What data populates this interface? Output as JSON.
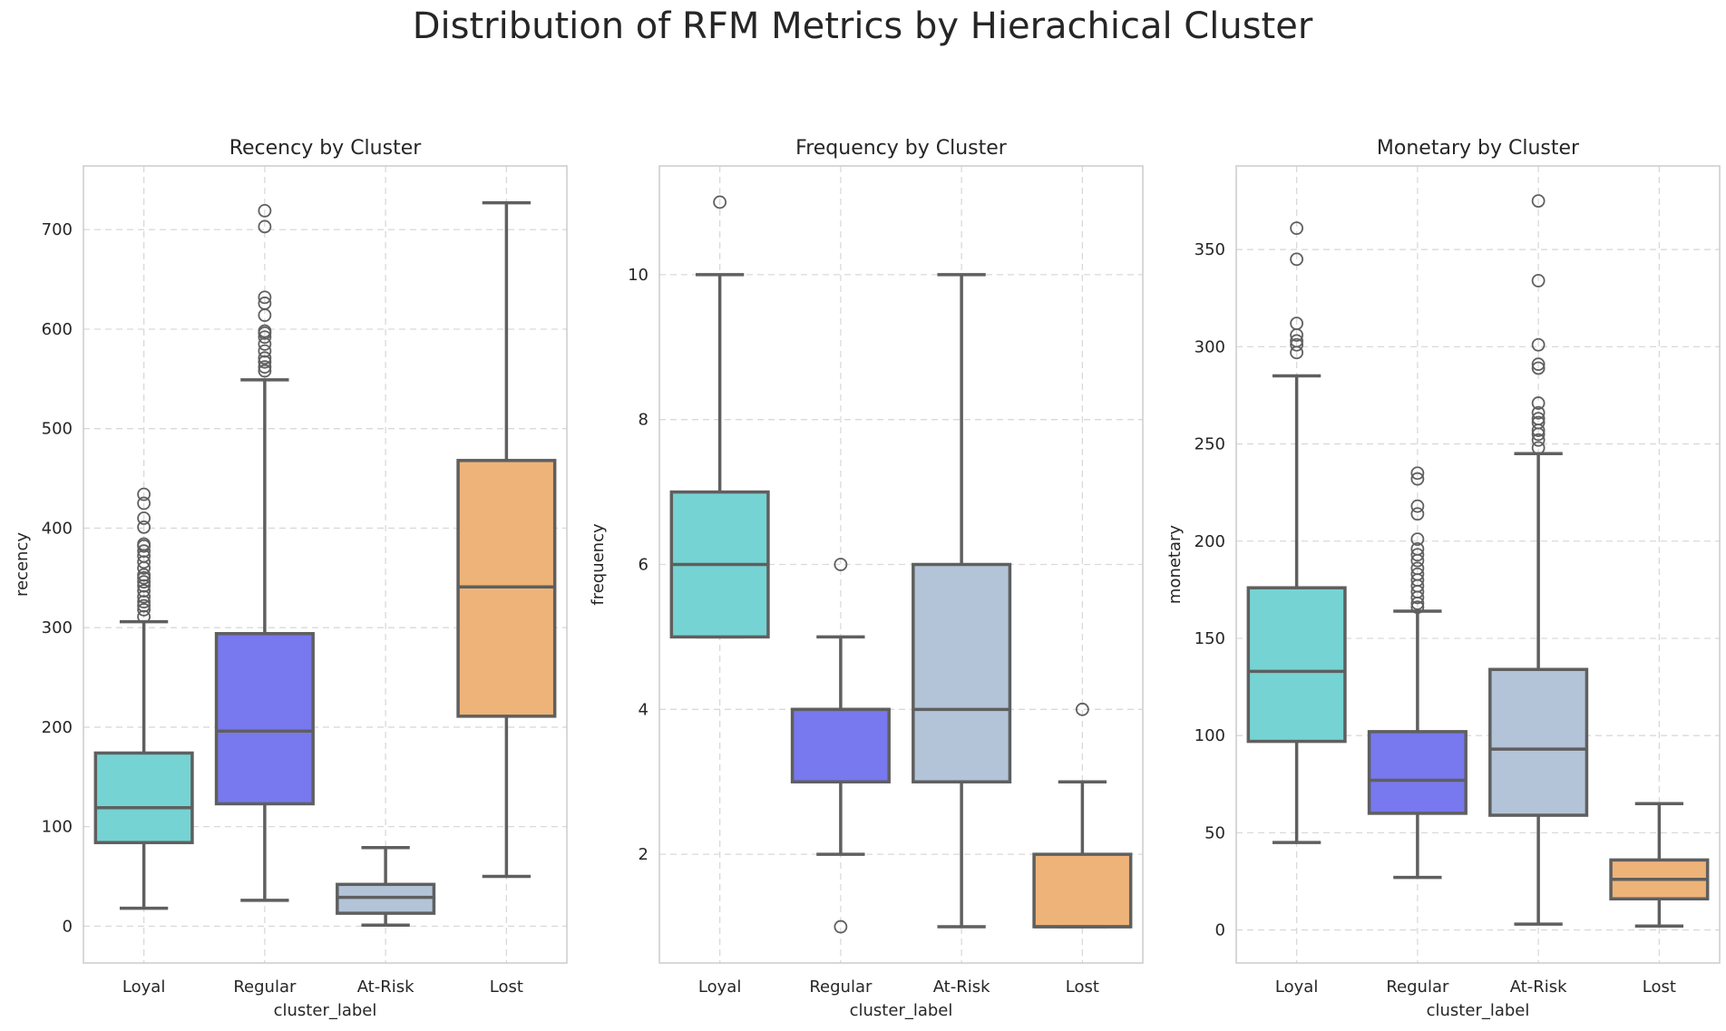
{
  "figure": {
    "suptitle": "Distribution of RFM Metrics by Hierachical Cluster",
    "colors": {
      "Loyal": "#76d3d3",
      "Regular": "#7878ef",
      "At-Risk": "#b3c4d9",
      "Lost": "#eeb378",
      "box_edge": "#5f5f5f",
      "grid": "#d9d9d9",
      "spine": "#cccccc"
    }
  },
  "chart_data": [
    {
      "type": "box",
      "title": "Recency by Cluster",
      "xlabel": "cluster_label",
      "ylabel": "recency",
      "categories": [
        "Loyal",
        "Regular",
        "At-Risk",
        "Lost"
      ],
      "ylim": [
        -37,
        764
      ],
      "yticks": [
        0,
        100,
        200,
        300,
        400,
        500,
        600,
        700
      ],
      "grid": true,
      "boxes": [
        {
          "category": "Loyal",
          "whislo": 18,
          "q1": 84,
          "median": 119,
          "q3": 174,
          "whishi": 306,
          "fliers": [
            311,
            318,
            322,
            326,
            331,
            337,
            342,
            346,
            350,
            353,
            360,
            366,
            372,
            377,
            382,
            384,
            401,
            410,
            425,
            434
          ]
        },
        {
          "category": "Regular",
          "whislo": 26,
          "q1": 123,
          "median": 196,
          "q3": 294,
          "whishi": 549,
          "fliers": [
            558,
            562,
            567,
            571,
            578,
            585,
            592,
            596,
            598,
            614,
            626,
            632,
            703,
            719
          ]
        },
        {
          "category": "At-Risk",
          "whislo": 1,
          "q1": 13,
          "median": 29,
          "q3": 42,
          "whishi": 79,
          "fliers": []
        },
        {
          "category": "Lost",
          "whislo": 50,
          "q1": 211,
          "median": 341,
          "q3": 468,
          "whishi": 727,
          "fliers": []
        }
      ]
    },
    {
      "type": "box",
      "title": "Frequency by Cluster",
      "xlabel": "cluster_label",
      "ylabel": "frequency",
      "categories": [
        "Loyal",
        "Regular",
        "At-Risk",
        "Lost"
      ],
      "ylim": [
        0.5,
        11.5
      ],
      "yticks": [
        2,
        4,
        6,
        8,
        10
      ],
      "grid": true,
      "boxes": [
        {
          "category": "Loyal",
          "whislo": 5,
          "q1": 5,
          "median": 6,
          "q3": 7,
          "whishi": 10,
          "fliers": [
            11
          ]
        },
        {
          "category": "Regular",
          "whislo": 2,
          "q1": 3,
          "median": 4,
          "q3": 4,
          "whishi": 5,
          "fliers": [
            1,
            6
          ]
        },
        {
          "category": "At-Risk",
          "whislo": 1,
          "q1": 3,
          "median": 4,
          "q3": 6,
          "whishi": 10,
          "fliers": []
        },
        {
          "category": "Lost",
          "whislo": 1,
          "q1": 1,
          "median": 1,
          "q3": 2,
          "whishi": 3,
          "fliers": [
            4
          ]
        }
      ]
    },
    {
      "type": "box",
      "title": "Monetary by Cluster",
      "xlabel": "cluster_label",
      "ylabel": "monetary",
      "categories": [
        "Loyal",
        "Regular",
        "At-Risk",
        "Lost"
      ],
      "ylim": [
        -17,
        393
      ],
      "yticks": [
        0,
        50,
        100,
        150,
        200,
        250,
        300,
        350
      ],
      "grid": true,
      "boxes": [
        {
          "category": "Loyal",
          "whislo": 45,
          "q1": 97,
          "median": 133,
          "q3": 176,
          "whishi": 285,
          "fliers": [
            297,
            301,
            303,
            306,
            312,
            345,
            361
          ]
        },
        {
          "category": "Regular",
          "whislo": 27,
          "q1": 60,
          "median": 77,
          "q3": 102,
          "whishi": 164,
          "fliers": [
            166,
            168,
            171,
            174,
            177,
            180,
            183,
            186,
            190,
            193,
            196,
            201,
            214,
            218,
            232,
            235
          ]
        },
        {
          "category": "At-Risk",
          "whislo": 3,
          "q1": 59,
          "median": 93,
          "q3": 134,
          "whishi": 245,
          "fliers": [
            248,
            252,
            255,
            257,
            261,
            263,
            266,
            271,
            289,
            291,
            301,
            334,
            375
          ]
        },
        {
          "category": "Lost",
          "whislo": 2,
          "q1": 16,
          "median": 26,
          "q3": 36,
          "whishi": 65,
          "fliers": []
        }
      ]
    }
  ]
}
